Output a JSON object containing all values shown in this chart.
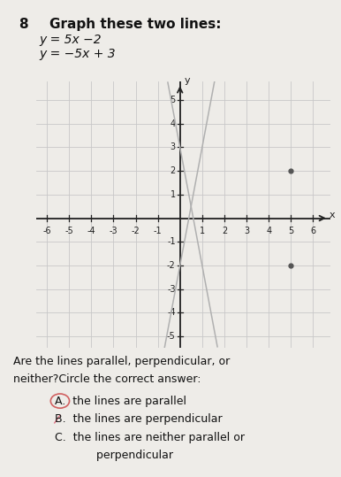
{
  "title_number": "8",
  "title_text": "Graph these two lines:",
  "equation1": "y = 5x −2",
  "equation2": "y = −5x + 3",
  "line1_slope": 5,
  "line1_intercept": -2,
  "line2_slope": -5,
  "line2_intercept": 3,
  "line_color": "#b0b0b0",
  "dot_color": "#555555",
  "xlim": [
    -6.5,
    6.8
  ],
  "ylim": [
    -5.5,
    5.8
  ],
  "xticks": [
    -6,
    -5,
    -4,
    -3,
    -2,
    -1,
    1,
    2,
    3,
    4,
    5,
    6
  ],
  "yticks": [
    -5,
    -4,
    -3,
    -2,
    -1,
    1,
    2,
    3,
    4,
    5
  ],
  "xlabel": "x",
  "ylabel": "y",
  "grid_color": "#c8c8c8",
  "axis_color": "#222222",
  "bg_color": "#eeece8",
  "question_line1": "Are the lines parallel, perpendicular, or",
  "question_line2": "neither?Circle the correct answer:",
  "answer_a": "A.  the lines are parallel",
  "answer_b": "B.  the lines are perpendicular",
  "answer_c1": "C.  the lines are neither parallel or",
  "answer_c2": "     perpendicular",
  "circle_color": "#d06060",
  "dot1_x": 5,
  "dot1_y": 2,
  "dot2_x": 5,
  "dot2_y": -2
}
